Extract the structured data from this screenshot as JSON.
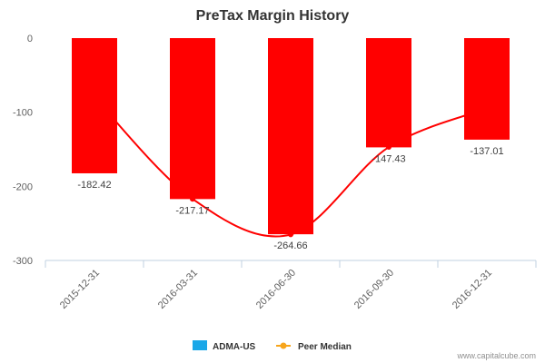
{
  "chart_data": {
    "type": "bar",
    "title": "PreTax Margin History",
    "categories": [
      "2015-12-31",
      "2016-03-31",
      "2016-06-30",
      "2016-09-30",
      "2016-12-31"
    ],
    "series": [
      {
        "name": "ADMA-US",
        "type": "bar",
        "values": [
          -182.42,
          -217.17,
          -264.66,
          -147.43,
          -137.01
        ],
        "color": "#ff0000",
        "legend_color": "#1aa7e8"
      },
      {
        "name": "Peer Median",
        "type": "line",
        "values": [
          -80,
          -217,
          -265,
          -147,
          -95
        ],
        "color": "#ff0000",
        "legend_color": "#f7a51c"
      }
    ],
    "data_labels": [
      "-182.42",
      "-217.17",
      "-264.66",
      "-147.43",
      "-137.01"
    ],
    "y_ticks": [
      0,
      -100,
      -200,
      -300
    ],
    "y_tick_labels": [
      "0",
      "-100",
      "-200",
      "-300"
    ],
    "ylim": [
      -300,
      0
    ],
    "xlabel": "",
    "ylabel": "",
    "legend_position": "bottom-center",
    "grid": false
  },
  "credit": "www.capitalcube.com"
}
